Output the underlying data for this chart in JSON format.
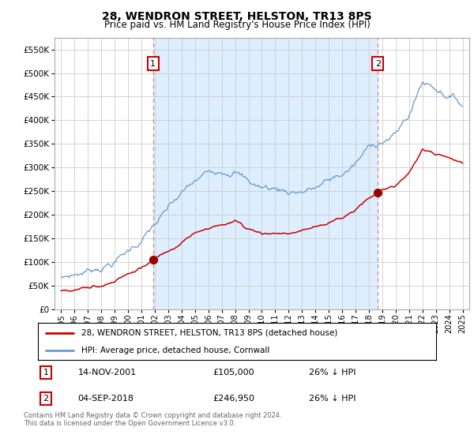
{
  "title": "28, WENDRON STREET, HELSTON, TR13 8PS",
  "subtitle": "Price paid vs. HM Land Registry's House Price Index (HPI)",
  "property_label": "28, WENDRON STREET, HELSTON, TR13 8PS (detached house)",
  "hpi_label": "HPI: Average price, detached house, Cornwall",
  "footnote": "Contains HM Land Registry data © Crown copyright and database right 2024.\nThis data is licensed under the Open Government Licence v3.0.",
  "transaction1_date": "14-NOV-2001",
  "transaction1_price": "£105,000",
  "transaction1_hpi": "26% ↓ HPI",
  "transaction2_date": "04-SEP-2018",
  "transaction2_price": "£246,950",
  "transaction2_hpi": "26% ↓ HPI",
  "transaction1_x": 2001.87,
  "transaction1_y": 105000,
  "transaction2_x": 2018.67,
  "transaction2_y": 246950,
  "vline1_x": 2001.87,
  "vline2_x": 2018.67,
  "ylim": [
    0,
    575000
  ],
  "xlim": [
    1994.5,
    2025.5
  ],
  "yticks": [
    0,
    50000,
    100000,
    150000,
    200000,
    250000,
    300000,
    350000,
    400000,
    450000,
    500000,
    550000
  ],
  "xticks": [
    1995,
    1996,
    1997,
    1998,
    1999,
    2000,
    2001,
    2002,
    2003,
    2004,
    2005,
    2006,
    2007,
    2008,
    2009,
    2010,
    2011,
    2012,
    2013,
    2014,
    2015,
    2016,
    2017,
    2018,
    2019,
    2020,
    2021,
    2022,
    2023,
    2024,
    2025
  ],
  "property_color": "#cc0000",
  "hpi_color": "#6699cc",
  "hpi_fill_color": "#ddeeff",
  "vline_color": "#dd8888",
  "background_color": "#ffffff",
  "grid_color": "#cccccc",
  "marker_color": "#990000",
  "label_box_color": "#cc0000",
  "shade_color": "#ddeeff"
}
